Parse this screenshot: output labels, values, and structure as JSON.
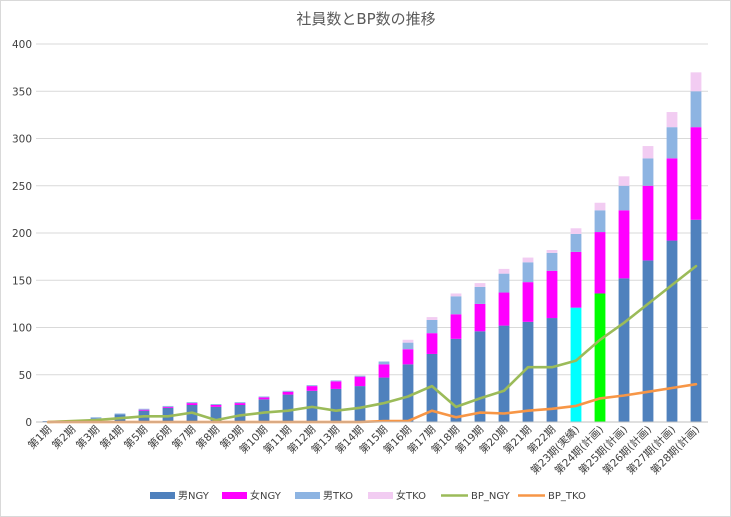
{
  "chart_data": {
    "type": "bar",
    "stacked": true,
    "title": "社員数とBP数の推移",
    "xlabel": "",
    "ylabel": "",
    "ylim": [
      0,
      400
    ],
    "yticks": [
      0,
      50,
      100,
      150,
      200,
      250,
      300,
      350,
      400
    ],
    "grid": true,
    "legend_position": "bottom",
    "categories": [
      "第1期",
      "第2期",
      "第3期",
      "第4期",
      "第5期",
      "第6期",
      "第7期",
      "第8期",
      "第9期",
      "第10期",
      "第11期",
      "第12期",
      "第13期",
      "第14期",
      "第15期",
      "第16期",
      "第17期",
      "第18期",
      "第19期",
      "第20期",
      "第21期",
      "第22期",
      "第23期(実績)",
      "第24期(計画)",
      "第25期(計画)",
      "第26期(計画)",
      "第27期(計画)",
      "第28期(計画)"
    ],
    "series": [
      {
        "name": "男NGY",
        "kind": "bar",
        "color": "#4f81bd",
        "values": [
          1,
          2,
          4,
          8,
          12,
          15,
          18,
          16,
          18,
          24,
          29,
          33,
          35,
          38,
          47,
          61,
          72,
          88,
          96,
          102,
          106,
          110,
          121,
          136,
          152,
          171,
          192,
          214
        ]
      },
      {
        "name": "女NGY",
        "kind": "bar",
        "color": "#ff00ff",
        "values": [
          0,
          0,
          0,
          0,
          1,
          1,
          2,
          2,
          2,
          2,
          3,
          5,
          8,
          10,
          14,
          16,
          22,
          26,
          29,
          35,
          42,
          50,
          59,
          65,
          72,
          79,
          87,
          98
        ]
      },
      {
        "name": "男TKO",
        "kind": "bar",
        "color": "#8db4e2",
        "values": [
          0,
          0,
          1,
          1,
          1,
          1,
          1,
          1,
          1,
          1,
          1,
          1,
          1,
          1,
          3,
          7,
          14,
          19,
          18,
          20,
          21,
          19,
          19,
          23,
          26,
          29,
          33,
          38
        ]
      },
      {
        "name": "女TKO",
        "kind": "bar",
        "color": "#f2ccf2",
        "values": [
          0,
          0,
          0,
          0,
          0,
          0,
          0,
          0,
          0,
          0,
          0,
          0,
          0,
          0,
          0,
          3,
          3,
          3,
          4,
          5,
          5,
          3,
          6,
          8,
          10,
          13,
          16,
          20
        ]
      },
      {
        "name": "BP_NGY",
        "kind": "line",
        "color": "#9bbb59",
        "values": [
          0,
          1,
          2,
          4,
          6,
          6,
          10,
          2,
          7,
          10,
          12,
          16,
          12,
          15,
          20,
          27,
          38,
          16,
          25,
          33,
          58,
          58,
          65,
          87,
          105,
          125,
          145,
          165
        ]
      },
      {
        "name": "BP_TKO",
        "kind": "line",
        "color": "#f79646",
        "values": [
          0,
          0,
          0,
          0,
          0,
          0,
          0,
          0,
          0,
          0,
          0,
          0,
          0,
          0,
          1,
          1,
          12,
          5,
          10,
          9,
          12,
          14,
          17,
          25,
          28,
          32,
          36,
          40
        ]
      }
    ],
    "highlight_bars": [
      {
        "category": "第23期(実績)",
        "series": "男NGY",
        "color": "#00ffff"
      },
      {
        "category": "第24期(計画)",
        "series": "男NGY",
        "color": "#00ff00"
      }
    ]
  }
}
